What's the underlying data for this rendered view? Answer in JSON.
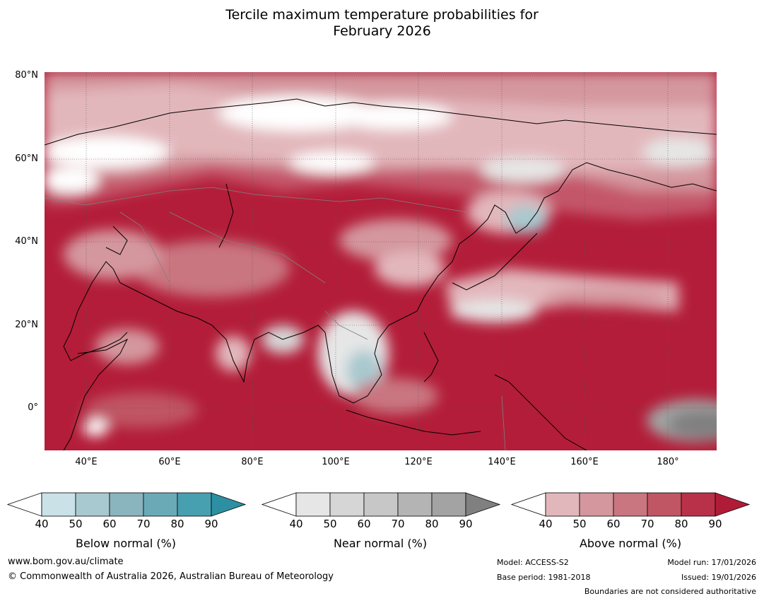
{
  "title_line1": "Tercile maximum temperature probabilities for",
  "title_line2": "February 2026",
  "lat_labels": [
    "80°N",
    "60°N",
    "40°N",
    "20°N",
    "0°"
  ],
  "lon_labels": [
    "40°E",
    "60°E",
    "80°E",
    "100°E",
    "120°E",
    "140°E",
    "160°E",
    "180°"
  ],
  "colorbars": [
    {
      "name": "below",
      "label": "Below normal (%)",
      "ticks": [
        "40",
        "50",
        "60",
        "70",
        "80",
        "90"
      ],
      "colors": [
        "#c9e1e7",
        "#a8c9cf",
        "#8ab4be",
        "#6aaab7",
        "#47a0b0",
        "#2d8fa2"
      ]
    },
    {
      "name": "near",
      "label": "Near normal (%)",
      "ticks": [
        "40",
        "50",
        "60",
        "70",
        "80",
        "90"
      ],
      "colors": [
        "#e6e6e6",
        "#d6d6d6",
        "#c7c7c7",
        "#b4b4b4",
        "#a3a3a3",
        "#808080"
      ]
    },
    {
      "name": "above",
      "label": "Above normal (%)",
      "ticks": [
        "40",
        "50",
        "60",
        "70",
        "80",
        "90"
      ],
      "colors": [
        "#e2b7bc",
        "#d4979e",
        "#c97680",
        "#c05563",
        "#b93148",
        "#b01c38"
      ]
    }
  ],
  "footer": {
    "website": "www.bom.gov.au/climate",
    "copyright": "© Commonwealth of Australia 2026, Australian Bureau of Meteorology",
    "model": "Model: ACCESS-S2",
    "base_period": "Base period: 1981-2018",
    "model_run": "Model run: 17/01/2026",
    "issued": "Issued: 19/01/2026",
    "disclaimer": "Boundaries are not considered authoritative"
  }
}
